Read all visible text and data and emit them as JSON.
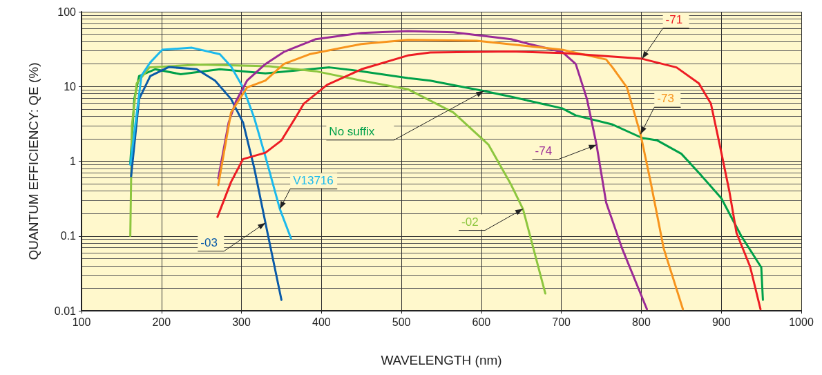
{
  "chart_data": {
    "type": "line",
    "xlabel": "WAVELENGTH (nm)",
    "ylabel": "QUANTUM EFFICIENCY: QE (%)",
    "log": "y",
    "grid": true,
    "legend": false,
    "marker": "none",
    "line_style": "solid",
    "xlim": [
      100,
      1000
    ],
    "xticks": [
      100,
      200,
      300,
      400,
      500,
      600,
      700,
      800,
      900,
      1000
    ],
    "ylim": [
      0.01,
      100
    ],
    "yticks": [
      0.01,
      0.1,
      1,
      10,
      100
    ],
    "series": [
      {
        "name": "No suffix",
        "color": "#00a04a",
        "x": [
          161,
          166,
          172,
          192,
          224,
          273,
          330,
          385,
          410,
          450,
          508,
          536,
          603,
          637,
          701,
          718,
          764,
          801,
          820,
          850,
          872,
          900,
          925,
          950,
          952
        ],
        "values": [
          0.93,
          6.8,
          13.8,
          17,
          14.6,
          17,
          15,
          17,
          18,
          16,
          13,
          12,
          8.7,
          7.3,
          5.1,
          4.1,
          3.1,
          2.05,
          1.9,
          1.26,
          0.7,
          0.32,
          0.1,
          0.038,
          0.014
        ]
      },
      {
        "name": "-02",
        "color": "#8dc63f",
        "x": [
          161,
          163,
          169,
          185,
          248,
          335,
          393,
          450,
          508,
          565,
          609,
          637,
          652,
          680
        ],
        "values": [
          0.1,
          3,
          11,
          18,
          19.6,
          18.6,
          16,
          12,
          9.2,
          4.5,
          1.66,
          0.49,
          0.23,
          0.017
        ]
      },
      {
        "name": "-03",
        "color": "#0a5aa8",
        "x": [
          162,
          172,
          186,
          209,
          244,
          267,
          287,
          302,
          316,
          330,
          350
        ],
        "values": [
          0.63,
          6.8,
          13.8,
          18.2,
          17,
          12,
          6.8,
          3.3,
          0.81,
          0.15,
          0.014
        ]
      },
      {
        "name": "V13716",
        "color": "#1cb9ec",
        "x": [
          161,
          175,
          186,
          201,
          238,
          273,
          287,
          302,
          316,
          330,
          348,
          362
        ],
        "values": [
          0.9,
          14,
          21,
          31,
          33,
          27,
          18.5,
          9.7,
          3.8,
          1.15,
          0.23,
          0.093
        ]
      },
      {
        "name": "-74",
        "color": "#9b2a96",
        "x": [
          271,
          284,
          293,
          307,
          330,
          353,
          393,
          450,
          508,
          565,
          637,
          660,
          701,
          718,
          732,
          744,
          756,
          776,
          807
        ],
        "values": [
          0.59,
          3.3,
          6.3,
          12,
          20,
          29,
          43,
          52,
          55,
          53,
          43,
          37,
          29,
          20,
          6.8,
          1.66,
          0.28,
          0.068,
          0.0105
        ]
      },
      {
        "name": "-73",
        "color": "#f7941d",
        "x": [
          271,
          287,
          307,
          330,
          353,
          385,
          450,
          508,
          594,
          701,
          756,
          764,
          782,
          799,
          811,
          828,
          852
        ],
        "values": [
          0.48,
          4.5,
          9.7,
          12,
          20,
          27,
          37,
          42,
          41,
          31,
          23,
          18,
          9.7,
          2.3,
          0.57,
          0.068,
          0.0105
        ]
      },
      {
        "name": "-71",
        "color": "#ed1c24",
        "x": [
          270,
          287,
          302,
          330,
          350,
          368,
          378,
          407,
          450,
          508,
          536,
          637,
          701,
          801,
          844,
          872,
          887,
          898,
          910,
          919,
          936,
          949
        ],
        "values": [
          0.18,
          0.53,
          1.07,
          1.3,
          1.9,
          3.9,
          5.9,
          10.5,
          17,
          26,
          28.5,
          29.5,
          28,
          23.5,
          18,
          11,
          5.9,
          1.66,
          0.4,
          0.11,
          0.039,
          0.0105
        ]
      }
    ]
  }
}
